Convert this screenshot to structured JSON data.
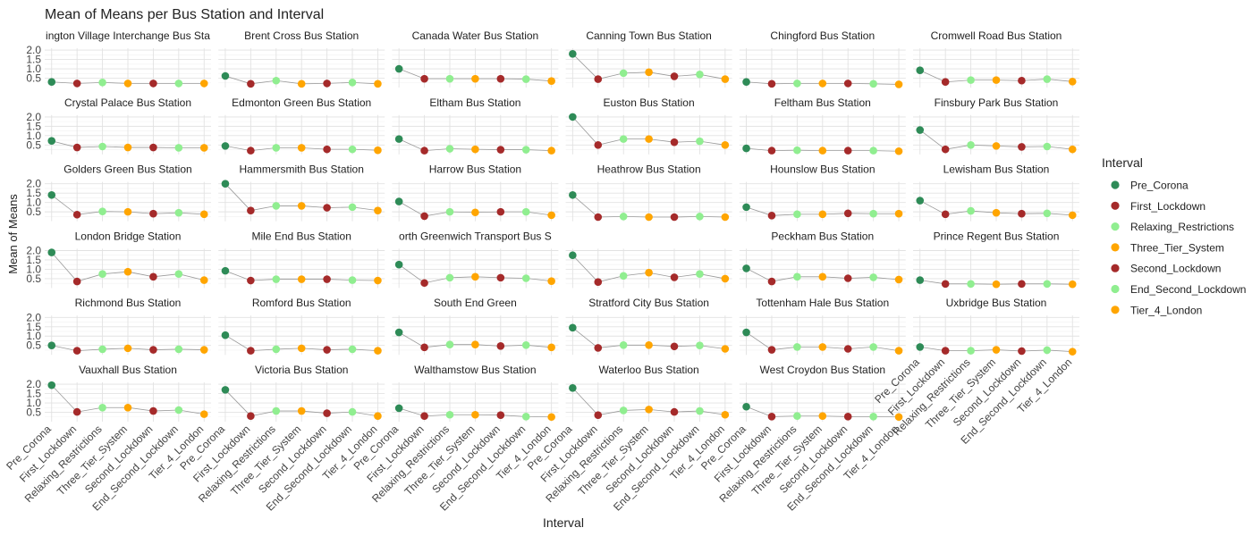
{
  "chart_data": {
    "type": "scatter",
    "title": "Mean of Means per Bus Station and Interval",
    "xlabel": "Interval",
    "ylabel": "Mean of Means",
    "ylim": [
      0.0,
      2.1
    ],
    "yticks": [
      0.5,
      1.0,
      1.5,
      2.0
    ],
    "ytick_labels": [
      "0.5",
      "1.0",
      "1.5",
      "2.0"
    ],
    "grid": true,
    "facet_cols": 6,
    "intervals": [
      "Pre_Corona",
      "First_Lockdown",
      "Relaxing_Restrictions",
      "Three_Tier_System",
      "Second_Lockdown",
      "End_Second_Lockdown",
      "Tier_4_London"
    ],
    "legend": {
      "title": "Interval",
      "position": "right",
      "entries": [
        {
          "label": "Pre_Corona",
          "color": "#2e8b57"
        },
        {
          "label": "First_Lockdown",
          "color": "#a52a2a"
        },
        {
          "label": "Relaxing_Restrictions",
          "color": "#90ee90"
        },
        {
          "label": "Three_Tier_System",
          "color": "#ffa500"
        },
        {
          "label": "Second_Lockdown",
          "color": "#a52a2a"
        },
        {
          "label": "End_Second_Lockdown",
          "color": "#90ee90"
        },
        {
          "label": "Tier_4_London",
          "color": "#ffa500"
        }
      ]
    },
    "facets": [
      {
        "title": "ington Village Interchange Bus Sta",
        "values": [
          0.3,
          0.22,
          0.27,
          0.22,
          0.22,
          0.22,
          0.22
        ]
      },
      {
        "title": "Brent Cross Bus Station",
        "values": [
          0.62,
          0.2,
          0.37,
          0.2,
          0.22,
          0.27,
          0.2
        ]
      },
      {
        "title": "Canada Water Bus Station",
        "values": [
          1.0,
          0.47,
          0.47,
          0.47,
          0.47,
          0.45,
          0.35
        ]
      },
      {
        "title": "Canning Town Bus Station",
        "values": [
          1.8,
          0.45,
          0.77,
          0.82,
          0.6,
          0.7,
          0.45
        ]
      },
      {
        "title": "Chingford Bus Station",
        "values": [
          0.3,
          0.2,
          0.22,
          0.22,
          0.22,
          0.2,
          0.17
        ]
      },
      {
        "title": "Cromwell Road Bus Station",
        "values": [
          0.92,
          0.3,
          0.4,
          0.4,
          0.37,
          0.45,
          0.32
        ]
      },
      {
        "title": "Crystal Palace Bus Station",
        "values": [
          0.72,
          0.37,
          0.42,
          0.37,
          0.37,
          0.35,
          0.35
        ]
      },
      {
        "title": "Edmonton Green Bus Station",
        "values": [
          0.45,
          0.2,
          0.35,
          0.35,
          0.27,
          0.27,
          0.22
        ]
      },
      {
        "title": "Eltham Bus Station",
        "values": [
          0.82,
          0.2,
          0.3,
          0.27,
          0.25,
          0.25,
          0.2
        ]
      },
      {
        "title": "Euston Bus Station",
        "values": [
          2.0,
          0.5,
          0.82,
          0.82,
          0.65,
          0.7,
          0.5
        ]
      },
      {
        "title": "Feltham Bus Station",
        "values": [
          0.32,
          0.2,
          0.22,
          0.2,
          0.2,
          0.2,
          0.17
        ]
      },
      {
        "title": "Finsbury Park Bus Station",
        "values": [
          1.3,
          0.27,
          0.5,
          0.45,
          0.4,
          0.42,
          0.27
        ]
      },
      {
        "title": "Golders Green Bus Station",
        "values": [
          1.4,
          0.35,
          0.52,
          0.5,
          0.4,
          0.45,
          0.37
        ]
      },
      {
        "title": "Hammersmith Bus Station",
        "values": [
          2.0,
          0.57,
          0.82,
          0.82,
          0.72,
          0.75,
          0.57
        ]
      },
      {
        "title": "Harrow Bus Station",
        "values": [
          1.05,
          0.27,
          0.5,
          0.47,
          0.5,
          0.5,
          0.32
        ]
      },
      {
        "title": "Heathrow Bus Station",
        "values": [
          1.4,
          0.22,
          0.25,
          0.22,
          0.22,
          0.25,
          0.22
        ]
      },
      {
        "title": "Hounslow Bus Station",
        "values": [
          0.75,
          0.3,
          0.37,
          0.37,
          0.42,
          0.4,
          0.4
        ]
      },
      {
        "title": "Lewisham Bus Station",
        "values": [
          1.1,
          0.37,
          0.55,
          0.45,
          0.4,
          0.42,
          0.32
        ]
      },
      {
        "title": "London Bridge Station",
        "values": [
          1.9,
          0.35,
          0.75,
          0.87,
          0.6,
          0.75,
          0.42
        ]
      },
      {
        "title": "Mile End Bus Station",
        "values": [
          0.92,
          0.4,
          0.47,
          0.47,
          0.47,
          0.42,
          0.4
        ]
      },
      {
        "title": "orth Greenwich Transport Bus S",
        "values": [
          1.25,
          0.27,
          0.55,
          0.6,
          0.55,
          0.52,
          0.37
        ]
      },
      {
        "title": "",
        "values": [
          1.75,
          0.32,
          0.65,
          0.82,
          0.57,
          0.75,
          0.5
        ]
      },
      {
        "title": "Peckham Bus Station",
        "values": [
          1.05,
          0.35,
          0.6,
          0.6,
          0.52,
          0.57,
          0.45
        ]
      },
      {
        "title": "Prince Regent Bus Station",
        "values": [
          0.42,
          0.22,
          0.22,
          0.2,
          0.22,
          0.22,
          0.2
        ]
      },
      {
        "title": "Richmond Bus Station",
        "values": [
          0.5,
          0.22,
          0.3,
          0.35,
          0.27,
          0.3,
          0.27
        ]
      },
      {
        "title": "Romford Bus Station",
        "values": [
          1.05,
          0.22,
          0.3,
          0.35,
          0.27,
          0.3,
          0.22
        ]
      },
      {
        "title": "South End Green",
        "values": [
          1.2,
          0.4,
          0.55,
          0.55,
          0.47,
          0.52,
          0.4
        ]
      },
      {
        "title": "Stratford City Bus Station",
        "values": [
          1.45,
          0.37,
          0.52,
          0.52,
          0.45,
          0.5,
          0.32
        ]
      },
      {
        "title": "Tottenham Hale Bus Station",
        "values": [
          1.2,
          0.27,
          0.42,
          0.42,
          0.32,
          0.42,
          0.22
        ]
      },
      {
        "title": "Uxbridge Bus Station",
        "values": [
          0.42,
          0.22,
          0.22,
          0.27,
          0.2,
          0.25,
          0.17
        ]
      },
      {
        "title": "Vauxhall Bus Station",
        "values": [
          1.95,
          0.52,
          0.75,
          0.75,
          0.57,
          0.62,
          0.4
        ]
      },
      {
        "title": "Victoria Bus Station",
        "values": [
          1.7,
          0.3,
          0.57,
          0.57,
          0.45,
          0.52,
          0.3
        ]
      },
      {
        "title": "Walthamstow Bus Station",
        "values": [
          0.72,
          0.3,
          0.37,
          0.37,
          0.35,
          0.27,
          0.25
        ]
      },
      {
        "title": "Waterloo Bus Station",
        "values": [
          1.8,
          0.35,
          0.6,
          0.65,
          0.52,
          0.57,
          0.37
        ]
      },
      {
        "title": "West Croydon Bus Station",
        "values": [
          0.8,
          0.27,
          0.3,
          0.3,
          0.27,
          0.27,
          0.25
        ]
      }
    ]
  }
}
